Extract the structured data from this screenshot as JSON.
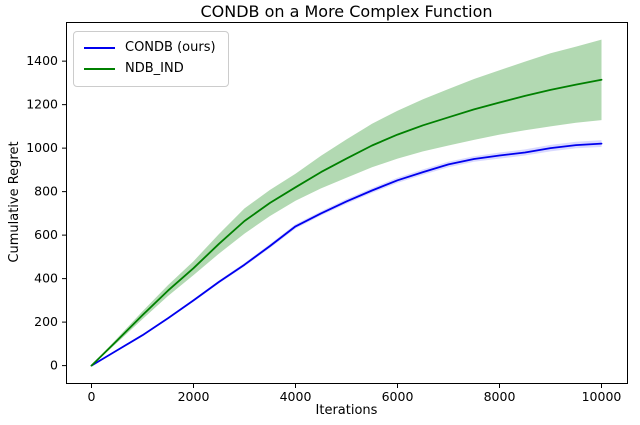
{
  "chart_data": {
    "type": "line",
    "title": "CONDB on a More Complex Function",
    "xlabel": "Iterations",
    "ylabel": "Cumulative Regret",
    "xlim": [
      -500,
      10500
    ],
    "ylim": [
      -80,
      1580
    ],
    "xticks": [
      0,
      2000,
      4000,
      6000,
      8000,
      10000
    ],
    "yticks": [
      0,
      200,
      400,
      600,
      800,
      1000,
      1200,
      1400
    ],
    "grid": false,
    "legend_position": "upper left",
    "x": [
      0,
      500,
      1000,
      1500,
      2000,
      2500,
      3000,
      3500,
      4000,
      4500,
      5000,
      5500,
      6000,
      6500,
      7000,
      7500,
      8000,
      8500,
      9000,
      9500,
      10000
    ],
    "series": [
      {
        "name": "CONDB (ours)",
        "color": "#0000ee",
        "band_color": "rgba(0,0,255,0.15)",
        "values": [
          0,
          70,
          140,
          218,
          300,
          385,
          464,
          550,
          640,
          700,
          755,
          805,
          852,
          890,
          925,
          950,
          966,
          980,
          1000,
          1014,
          1021
        ],
        "band_half": [
          2,
          3,
          4,
          5,
          6,
          7,
          8,
          9,
          10,
          10,
          11,
          11,
          12,
          12,
          13,
          13,
          14,
          14,
          15,
          15,
          16
        ]
      },
      {
        "name": "NDB_IND",
        "color": "#008000",
        "band_color": "rgba(0,128,0,0.3)",
        "values": [
          0,
          115,
          232,
          345,
          448,
          560,
          665,
          748,
          820,
          890,
          952,
          1012,
          1062,
          1105,
          1142,
          1178,
          1210,
          1240,
          1268,
          1292,
          1314
        ],
        "band_half": [
          2,
          10,
          18,
          25,
          32,
          45,
          58,
          60,
          62,
          75,
          88,
          100,
          110,
          120,
          130,
          140,
          148,
          158,
          168,
          175,
          185
        ]
      }
    ]
  },
  "style": {
    "spine_color": "#000000",
    "tick_color": "#000000",
    "text_color": "#000000",
    "background": "#ffffff",
    "line_width": 1.8
  }
}
